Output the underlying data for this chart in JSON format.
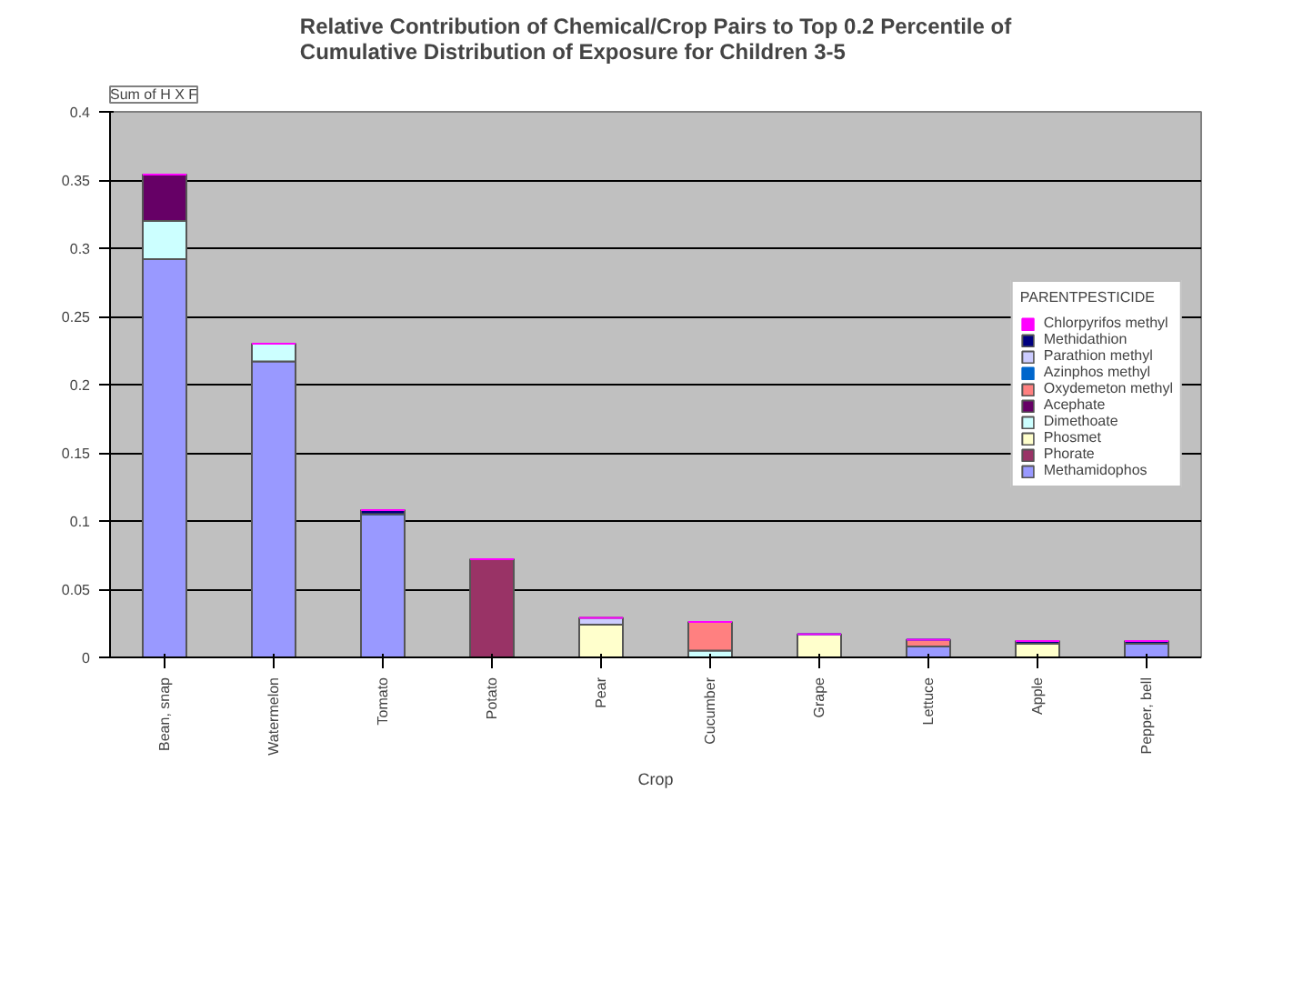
{
  "chart_data": {
    "type": "bar",
    "stacked": true,
    "title": "Relative Contribution of Chemical/Crop Pairs to Top 0.2 Percentile of\nCumulative Distribution of Exposure for Children 3-5",
    "ylabel": "Sum of H X F",
    "xlabel": "Crop",
    "legend_title": "PARENTPESTICIDE",
    "legend": "right",
    "grid": "y",
    "categories": [
      "Bean, snap",
      "Watermelon",
      "Tomato",
      "Potato",
      "Pear",
      "Cucumber",
      "Grape",
      "Lettuce",
      "Apple",
      "Pepper, bell"
    ],
    "ylim": [
      0,
      0.4
    ],
    "yticks": [
      0,
      0.05,
      0.1,
      0.15,
      0.2,
      0.25,
      0.3,
      0.35,
      0.4
    ],
    "series": [
      {
        "name": "Methamidophos",
        "color": "#9999ff",
        "values": [
          0.292,
          0.217,
          0.105,
          null,
          null,
          null,
          null,
          0.008,
          null,
          0.01
        ]
      },
      {
        "name": "Phorate",
        "color": "#993366",
        "values": [
          null,
          null,
          null,
          0.072,
          null,
          null,
          null,
          null,
          null,
          null
        ]
      },
      {
        "name": "Phosmet",
        "color": "#ffffcc",
        "values": [
          null,
          null,
          null,
          null,
          0.024,
          null,
          0.017,
          null,
          0.01,
          null
        ]
      },
      {
        "name": "Dimethoate",
        "color": "#ccffff",
        "values": [
          0.028,
          0.013,
          null,
          null,
          null,
          0.005,
          null,
          null,
          null,
          null
        ]
      },
      {
        "name": "Acephate",
        "color": "#660066",
        "values": [
          0.034,
          null,
          null,
          null,
          null,
          null,
          null,
          null,
          null,
          null
        ]
      },
      {
        "name": "Oxydemeton methyl",
        "color": "#ff8080",
        "values": [
          null,
          null,
          null,
          null,
          null,
          0.021,
          null,
          0.005,
          null,
          null
        ]
      },
      {
        "name": "Azinphos methyl",
        "color": "#0066cc",
        "values": [
          0,
          0,
          0,
          0,
          0,
          0,
          0,
          0,
          0,
          0
        ]
      },
      {
        "name": "Parathion methyl",
        "color": "#ccccff",
        "values": [
          null,
          null,
          null,
          null,
          0.005,
          null,
          null,
          null,
          null,
          null
        ]
      },
      {
        "name": "Methidathion",
        "color": "#000080",
        "values": [
          null,
          null,
          0.003,
          null,
          null,
          null,
          null,
          null,
          0.002,
          0.002
        ]
      },
      {
        "name": "Chlorpyrifos methyl",
        "color": "#ff00ff",
        "values": [
          0,
          0,
          0,
          0,
          0,
          0,
          0,
          0,
          0,
          0
        ]
      }
    ]
  }
}
